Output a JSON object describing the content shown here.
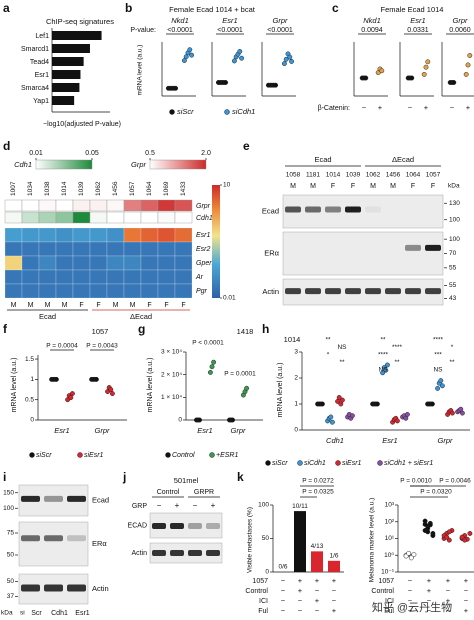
{
  "panels": {
    "a": {
      "letter": "a",
      "type": "hbar",
      "title": "ChIP-seq signatures",
      "categories": [
        "Lef1",
        "Smarcd1",
        "Tead4",
        "Esr1",
        "Smarca4",
        "Yap1"
      ],
      "values": [
        47,
        36,
        30,
        27,
        26,
        21
      ],
      "xlim": [
        0,
        55
      ],
      "color": "#111111",
      "xlabel": "−log10(adjusted P-value)"
    },
    "b": {
      "letter": "b",
      "type": "dotplot",
      "title": "Female Ecad 1014 + bcat",
      "p_label": "P-value:",
      "ylabel": "mRNA level (a.u.)",
      "series": [
        {
          "name": "siScr",
          "color": "#111111"
        },
        {
          "name": "siCdh1",
          "color": "#3a96d8"
        }
      ],
      "groups": [
        {
          "name": "Nkd1",
          "p": "<0.0001",
          "ylim": [
            0,
            7
          ],
          "values": [
            [
              1,
              1,
              1,
              1,
              1
            ],
            [
              4.6,
              5.1,
              5.6,
              6.0,
              5.3
            ]
          ]
        },
        {
          "name": "Esr1",
          "p": "<0.0001",
          "ylim": [
            0,
            4
          ],
          "values": [
            [
              1,
              1,
              1,
              1,
              1
            ],
            [
              2.6,
              2.9,
              3.1,
              3.3,
              2.8
            ]
          ]
        },
        {
          "name": "Grpr",
          "p": "<0.0001",
          "ylim": [
            0,
            5
          ],
          "values": [
            [
              1,
              1,
              1,
              1,
              1
            ],
            [
              3.0,
              3.4,
              3.9,
              3.6,
              3.2
            ]
          ]
        }
      ]
    },
    "c": {
      "letter": "c",
      "type": "dotplot",
      "title": "Female Ecad 1014",
      "xlabel": "β-Catenin:",
      "series": [
        {
          "name": "−",
          "color": "#111111"
        },
        {
          "name": "+",
          "color": "#e3a24a"
        }
      ],
      "groups": [
        {
          "name": "Nkd1",
          "p": "0.0094",
          "ylim": [
            0,
            3
          ],
          "values": [
            [
              1,
              1,
              1
            ],
            [
              1.3,
              1.5,
              1.4
            ]
          ]
        },
        {
          "name": "Esr1",
          "p": "0.0331",
          "ylim": [
            0,
            3
          ],
          "values": [
            [
              1,
              1,
              1
            ],
            [
              1.2,
              1.6,
              1.9
            ]
          ]
        },
        {
          "name": "Grpr",
          "p": "0.0060",
          "ylim": [
            0,
            4
          ],
          "values": [
            [
              1,
              1,
              1
            ],
            [
              1.6,
              2.3,
              3.0
            ]
          ]
        }
      ]
    },
    "d": {
      "letter": "d",
      "type": "heatmap",
      "cdh1_scale": {
        "name": "Cdh1",
        "ticks": [
          0.01,
          0.05
        ]
      },
      "grpr_scale": {
        "name": "Grpr",
        "ticks": [
          0.5,
          {
            "value": 2,
            "label": "2.0"
          }
        ]
      },
      "scale_ticks": [
        10,
        0.01
      ],
      "columns": [
        "1007",
        "1034",
        "1038",
        "1014",
        "1039",
        "1062",
        "1456",
        "1057",
        "1064",
        "1069",
        "1433"
      ],
      "sex": [
        "M",
        "M",
        "M",
        "M",
        "F",
        "F",
        "M",
        "M",
        "F",
        "F",
        "F"
      ],
      "groups": [
        {
          "name": "Ecad",
          "span": 5
        },
        {
          "name": "ΔEcad",
          "span": 6
        }
      ],
      "top_rows": [
        {
          "name": "Grpr",
          "scale": "grpr",
          "values": [
            0.5,
            0.5,
            0.55,
            0.5,
            0.6,
            0.6,
            0.55,
            1.4,
            1.6,
            1.9,
            1.7
          ]
        },
        {
          "name": "Cdh1",
          "scale": "cdh1",
          "values": [
            0.012,
            0.02,
            0.025,
            0.03,
            0.05,
            0.012,
            0.01,
            0.01,
            0.01,
            0.011,
            0.01
          ]
        }
      ],
      "rows": [
        {
          "name": "Esr1",
          "values": [
            0.06,
            0.05,
            0.05,
            0.04,
            0.05,
            0.05,
            0.04,
            3,
            4,
            5,
            3.5
          ]
        },
        {
          "name": "Esr2",
          "values": [
            0.02,
            0.02,
            0.02,
            0.02,
            0.02,
            0.02,
            0.02,
            0.02,
            0.02,
            0.02,
            0.02
          ]
        },
        {
          "name": "Gper1",
          "values": [
            0.6,
            0.02,
            0.03,
            0.02,
            0.02,
            0.02,
            0.03,
            0.03,
            0.02,
            0.02,
            0.02
          ]
        },
        {
          "name": "Ar",
          "values": [
            0.02,
            0.02,
            0.02,
            0.02,
            0.02,
            0.02,
            0.02,
            0.02,
            0.02,
            0.02,
            0.02
          ]
        },
        {
          "name": "Pgr",
          "values": [
            0.02,
            0.02,
            0.02,
            0.02,
            0.02,
            0.02,
            0.02,
            0.02,
            0.02,
            0.02,
            0.02
          ]
        }
      ]
    },
    "e": {
      "letter": "e",
      "type": "blot",
      "unit": "kDa",
      "columns": [
        "1058",
        "1181",
        "1014",
        "1039",
        "1062",
        "1456",
        "1064",
        "1057"
      ],
      "sex": [
        "M",
        "M",
        "F",
        "F",
        "M",
        "M",
        "F",
        "F"
      ],
      "groups": [
        {
          "name": "Ecad",
          "span": 4
        },
        {
          "name": "ΔEcad",
          "span": 4
        }
      ],
      "rows": [
        {
          "name": "Ecad",
          "markers": [
            130,
            100
          ]
        },
        {
          "name": "ERα",
          "markers": [
            100,
            70,
            55
          ]
        },
        {
          "name": "Actin",
          "markers": [
            55,
            43
          ]
        }
      ]
    },
    "f": {
      "letter": "f",
      "type": "dotplot",
      "title": "1057",
      "ylabel": "mRNA level (a.u.)",
      "ylim": [
        0,
        1.6
      ],
      "yticks": [
        0,
        0.5,
        1,
        1.5
      ],
      "series": [
        {
          "name": "siScr",
          "color": "#111111"
        },
        {
          "name": "siEsr1",
          "color": "#d9262e"
        }
      ],
      "groups": [
        {
          "name": "Esr1",
          "p": "P = 0.0004",
          "values": [
            [
              1,
              1,
              1,
              1
            ],
            [
              0.5,
              0.6,
              0.55,
              0.65
            ]
          ]
        },
        {
          "name": "Grpr",
          "p": "P = 0.0043",
          "values": [
            [
              1,
              1,
              1,
              1
            ],
            [
              0.7,
              0.8,
              0.75,
              0.65
            ]
          ]
        }
      ]
    },
    "g": {
      "letter": "g",
      "type": "dotplot",
      "title": "1418",
      "ylabel": "mRNA level (a.u.)",
      "ylim": [
        0,
        30000
      ],
      "yticks": [
        0,
        {
          "value": 10000,
          "label": "1 × 10⁴"
        },
        {
          "value": 20000,
          "label": "2 × 10⁴"
        },
        {
          "value": 30000,
          "label": "3 × 10⁴"
        }
      ],
      "series": [
        {
          "name": "Control",
          "color": "#111111"
        },
        {
          "name": "+ESR1",
          "color": "#3a9a50"
        }
      ],
      "groups": [
        {
          "name": "Esr1",
          "p": "P < 0.0001",
          "values": [
            [
              1,
              1,
              1
            ],
            [
              21000,
              23500,
              25500
            ]
          ]
        },
        {
          "name": "Grpr",
          "p": "P = 0.0001",
          "values": [
            [
              1,
              1,
              1
            ],
            [
              11000,
              12500,
              14000
            ]
          ]
        }
      ]
    },
    "h": {
      "letter": "h",
      "type": "dotplot",
      "title": "1014",
      "ylabel": "mRNA level (a.u.)",
      "ylim": [
        0,
        3
      ],
      "yticks": [
        0,
        1,
        2,
        3
      ],
      "series": [
        {
          "name": "siScr",
          "color": "#111111"
        },
        {
          "name": "siCdh1",
          "color": "#3a96d8"
        },
        {
          "name": "siEsr1",
          "color": "#d9262e"
        },
        {
          "name": "siCdh1 + siEsr1",
          "color": "#8a4fa5"
        }
      ],
      "groups": [
        {
          "name": "Cdh1",
          "stars": [
            "**",
            "NS",
            "*",
            "**"
          ],
          "values": [
            [
              1,
              1,
              1,
              1
            ],
            [
              0.35,
              0.45,
              0.5,
              0.3
            ],
            [
              1.1,
              1.25,
              1.0,
              1.15
            ],
            [
              0.5,
              0.6,
              0.45,
              0.55
            ]
          ]
        },
        {
          "name": "Esr1",
          "stars": [
            "**",
            "****",
            "****",
            "**",
            "NS"
          ],
          "values": [
            [
              1,
              1,
              1,
              1
            ],
            [
              2.2,
              2.4,
              2.3,
              2.5
            ],
            [
              0.3,
              0.4,
              0.45,
              0.35
            ],
            [
              0.5,
              0.55,
              0.45,
              0.6
            ]
          ]
        },
        {
          "name": "Grpr",
          "stars": [
            "****",
            "*",
            "***",
            "**",
            "NS"
          ],
          "values": [
            [
              1,
              1,
              1,
              1
            ],
            [
              1.6,
              1.8,
              1.9,
              1.7
            ],
            [
              0.6,
              0.7,
              0.75,
              0.65
            ],
            [
              0.7,
              0.75,
              0.8,
              0.65
            ]
          ]
        }
      ]
    },
    "i": {
      "letter": "i",
      "type": "blot",
      "unit": "kDa",
      "prefix": "si",
      "columns": [
        "Scr",
        "Cdh1",
        "Esr1"
      ],
      "rows": [
        {
          "name": "Ecad",
          "markers": [
            150,
            100
          ]
        },
        {
          "name": "ERα",
          "markers": [
            75,
            50
          ]
        },
        {
          "name": "Actin",
          "markers": [
            50,
            37
          ]
        }
      ]
    },
    "j": {
      "letter": "j",
      "type": "blot",
      "title": "501mel",
      "groups": [
        "Control",
        "GRPR"
      ],
      "treatment": "GRP",
      "signs": [
        "−",
        "+",
        "−",
        "+"
      ],
      "rows": [
        {
          "name": "ECAD"
        },
        {
          "name": "Actin"
        }
      ]
    },
    "k": {
      "letter": "k",
      "bar": {
        "type": "bar",
        "ylabel": "Visible metastases (%)",
        "ylim": [
          0,
          100
        ],
        "yticks": [
          0,
          50,
          100
        ],
        "values": [
          0,
          90.9,
          30.8,
          16.7
        ],
        "value_labels": [
          "0/6",
          "10/11",
          "4/13",
          "1/6"
        ],
        "colors": [
          "#111111",
          "#111111",
          "#d9262e",
          "#d9262e"
        ],
        "p": [
          "P = 0.0325",
          "P = 0.0272"
        ]
      },
      "scatter": {
        "type": "dotplot",
        "ylabel": "Melanoma marker level (a.u.)",
        "log": true,
        "ylim": [
          0.1,
          1000
        ],
        "yticks": [
          {
            "value": 0.1,
            "label": "10⁻¹"
          },
          {
            "value": 1,
            "label": "10⁰"
          },
          {
            "value": 10,
            "label": "10¹"
          },
          {
            "value": 100,
            "label": "10²"
          },
          {
            "value": 1000,
            "label": "10³"
          }
        ],
        "groups": [
          {
            "color": "#ffffff",
            "values": [
              1,
              1.2,
              0.8,
              1.1,
              0.9,
              1.3,
              0.7
            ]
          },
          {
            "color": "#111111",
            "values": [
              30,
              55,
              80,
              20,
              110,
              40,
              65,
              15,
              70,
              25
            ]
          },
          {
            "color": "#d9262e",
            "values": [
              10,
              20,
              8,
              30,
              15,
              12,
              25
            ]
          },
          {
            "color": "#d9262e",
            "values": [
              10,
              15,
              9,
              20,
              12,
              8
            ]
          }
        ],
        "p": [
          "P = 0.0010",
          "P = 0.0046",
          "P = 0.0320"
        ]
      },
      "conditions": [
        {
          "name": "1057",
          "signs": [
            "−",
            "+",
            "+",
            "+"
          ]
        },
        {
          "name": "Control",
          "signs": [
            "−",
            "+",
            "−",
            "−"
          ]
        },
        {
          "name": "ICI",
          "signs": [
            "−",
            "−",
            "+",
            "−"
          ]
        },
        {
          "name": "Ful",
          "signs": [
            "−",
            "−",
            "−",
            "+"
          ]
        }
      ]
    },
    "watermark": "知乎 @云丹生物"
  }
}
